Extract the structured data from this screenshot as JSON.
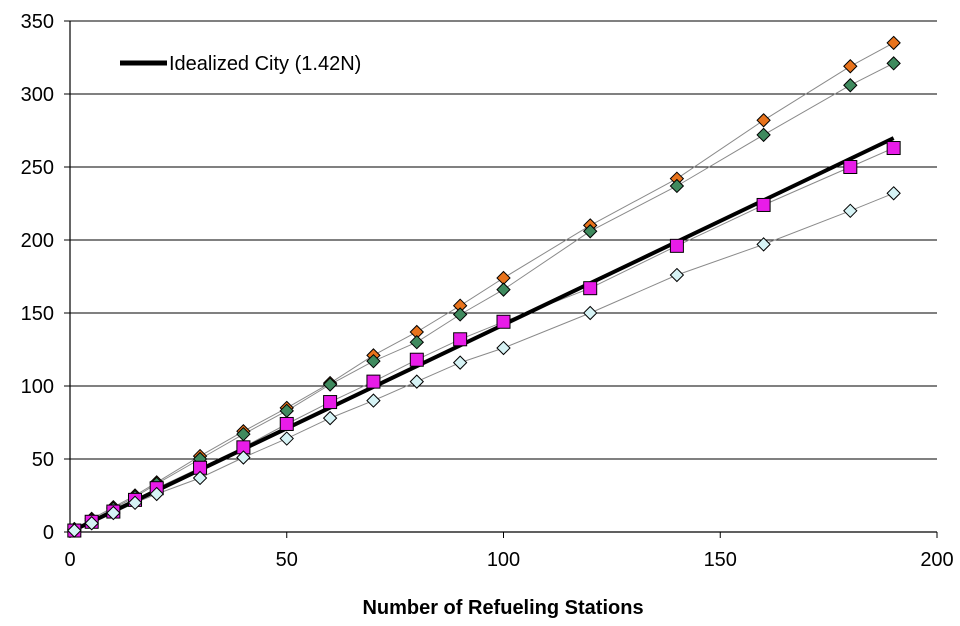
{
  "chart_data": {
    "type": "scatter",
    "title": "",
    "xlabel": "Number of Refueling Stations",
    "ylabel": "",
    "xlim": [
      0,
      200
    ],
    "ylim": [
      0,
      350
    ],
    "xticks": [
      0,
      50,
      100,
      150,
      200
    ],
    "yticks": [
      0,
      50,
      100,
      150,
      200,
      250,
      300,
      350
    ],
    "grid": "horizontal",
    "legend": "top-left",
    "series": [
      {
        "name": "Idealized City (1.42N)",
        "type": "line",
        "color": "#000000",
        "x": [
          0,
          190
        ],
        "y": [
          0,
          269.8
        ]
      },
      {
        "name": "",
        "type": "scatter-line",
        "marker": "diamond",
        "color": "#e8731c",
        "x": [
          1,
          5,
          10,
          15,
          20,
          30,
          40,
          50,
          60,
          70,
          80,
          90,
          100,
          120,
          140,
          160,
          180,
          190
        ],
        "y": [
          2,
          9,
          17,
          25,
          34,
          52,
          69,
          85,
          102,
          121,
          137,
          155,
          174,
          210,
          242,
          282,
          319,
          335
        ]
      },
      {
        "name": "",
        "type": "scatter-line",
        "marker": "diamond",
        "color": "#3f8a5e",
        "x": [
          1,
          5,
          10,
          15,
          20,
          30,
          40,
          50,
          60,
          70,
          80,
          90,
          100,
          120,
          140,
          160,
          180,
          190
        ],
        "y": [
          2,
          8,
          16,
          24,
          33,
          50,
          67,
          83,
          101,
          117,
          130,
          149,
          166,
          206,
          237,
          272,
          306,
          321
        ]
      },
      {
        "name": "",
        "type": "scatter-line",
        "marker": "square",
        "color": "#e81ce8",
        "x": [
          1,
          5,
          10,
          15,
          20,
          30,
          40,
          50,
          60,
          70,
          80,
          90,
          100,
          120,
          140,
          160,
          180,
          190
        ],
        "y": [
          1,
          7,
          14,
          22,
          30,
          44,
          58,
          74,
          89,
          103,
          118,
          132,
          144,
          167,
          196,
          224,
          250,
          263
        ]
      },
      {
        "name": "",
        "type": "scatter-line",
        "marker": "diamond",
        "color": "#d6f3f5",
        "x": [
          1,
          5,
          10,
          15,
          20,
          30,
          40,
          50,
          60,
          70,
          80,
          90,
          100,
          120,
          140,
          160,
          180,
          190
        ],
        "y": [
          1,
          6,
          13,
          20,
          26,
          37,
          51,
          64,
          78,
          90,
          103,
          116,
          126,
          150,
          176,
          197,
          220,
          232
        ]
      }
    ]
  }
}
